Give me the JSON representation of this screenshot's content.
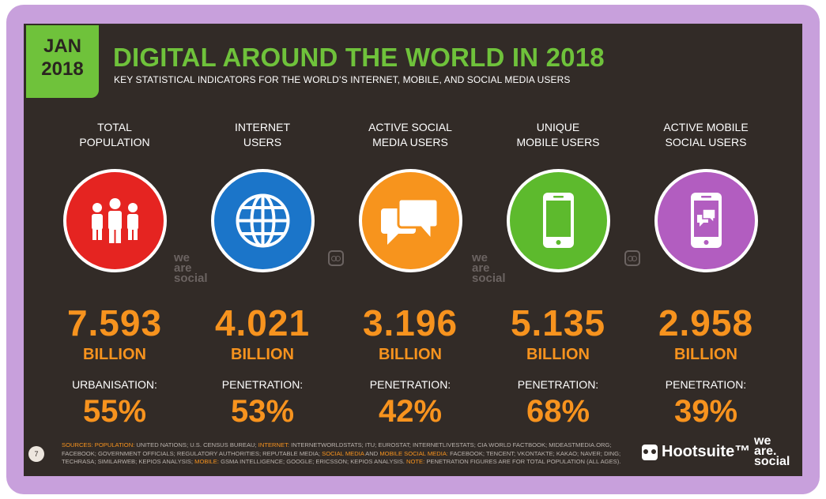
{
  "badge": {
    "line1": "JAN",
    "line2": "2018"
  },
  "title": "DIGITAL AROUND THE WORLD IN 2018",
  "subtitle": "KEY STATISTICAL INDICATORS FOR THE WORLD’S INTERNET, MOBILE, AND SOCIAL MEDIA USERS",
  "stats": [
    {
      "head1": "TOTAL",
      "head2": "POPULATION",
      "value": "7.593",
      "unit": "BILLION",
      "plabel": "URBANISATION:",
      "pval": "55%",
      "color": "#e52421",
      "icon": "people-icon"
    },
    {
      "head1": "INTERNET",
      "head2": "USERS",
      "value": "4.021",
      "unit": "BILLION",
      "plabel": "PENETRATION:",
      "pval": "53%",
      "color": "#1b75c9",
      "icon": "globe-icon"
    },
    {
      "head1": "ACTIVE SOCIAL",
      "head2": "MEDIA USERS",
      "value": "3.196",
      "unit": "BILLION",
      "plabel": "PENETRATION:",
      "pval": "42%",
      "color": "#f7941d",
      "icon": "chat-bubbles-icon"
    },
    {
      "head1": "UNIQUE",
      "head2": "MOBILE USERS",
      "value": "5.135",
      "unit": "BILLION",
      "plabel": "PENETRATION:",
      "pval": "68%",
      "color": "#5dba2d",
      "icon": "smartphone-icon"
    },
    {
      "head1": "ACTIVE MOBILE",
      "head2": "SOCIAL USERS",
      "value": "2.958",
      "unit": "BILLION",
      "plabel": "PENETRATION:",
      "pval": "39%",
      "color": "#b25dc0",
      "icon": "phone-chat-icon"
    }
  ],
  "watermark": {
    "we": "we",
    "are": "are",
    "social": "social"
  },
  "page_number": "7",
  "sources": {
    "l_sources": "SOURCES:",
    "l_population": "POPULATION:",
    "t1": "UNITED NATIONS; U.S. CENSUS BUREAU;",
    "l_internet": "INTERNET:",
    "t2": "INTERNETWORLDSTATS; ITU; EUROSTAT; INTERNETLIVESTATS; CIA WORLD FACTBOOK; MIDEASTMEDIA.ORG; FACEBOOK; GOVERNMENT OFFICIALS; REGULATORY AUTHORITIES; REPUTABLE MEDIA;",
    "l_social": "SOCIAL MEDIA",
    "t3": "AND",
    "l_mobsocial": "MOBILE SOCIAL MEDIA:",
    "t4": "FACEBOOK; TENCENT; VKONTAKTE; KAKAO; NAVER; DING; TECHRASA; SIMILARWEB; KEPIOS ANALYSIS;",
    "l_mobile": "MOBILE:",
    "t5": "GSMA INTELLIGENCE; GOOGLE; ERICSSON; KEPIOS ANALYSIS.",
    "l_note": "NOTE:",
    "t6": "PENETRATION FIGURES ARE FOR TOTAL POPULATION (ALL AGES)."
  },
  "hootsuite": "Hootsuite™",
  "brand": {
    "we": "we",
    "are": "are.",
    "social": "social"
  }
}
